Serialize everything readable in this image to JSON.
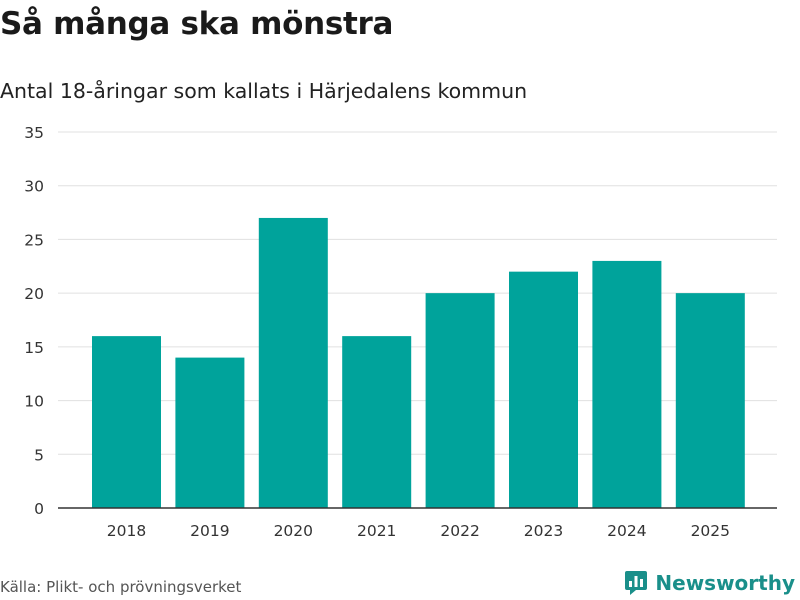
{
  "title": "Så många ska mönstra",
  "subtitle": "Antal 18-åringar som kallats i Härjedalens kommun",
  "source": "Källa: Plikt- och prövningsverket",
  "brand": {
    "name": "Newsworthy",
    "logo_icon": "bar-chart-icon",
    "color": "#1a8f8a"
  },
  "colors": {
    "bar": "#00a39b",
    "grid": "#e0e0e0",
    "axis": "#333333"
  },
  "chart_data": {
    "type": "bar",
    "title": "Så många ska mönstra",
    "subtitle": "Antal 18-åringar som kallats i Härjedalens kommun",
    "xlabel": "",
    "ylabel": "",
    "categories": [
      "2018",
      "2019",
      "2020",
      "2021",
      "2022",
      "2023",
      "2024",
      "2025"
    ],
    "values": [
      16,
      14,
      27,
      16,
      20,
      22,
      23,
      20
    ],
    "ylim": [
      0,
      35
    ],
    "yticks": [
      0,
      5,
      10,
      15,
      20,
      25,
      30,
      35
    ],
    "grid": true,
    "legend": "none"
  }
}
